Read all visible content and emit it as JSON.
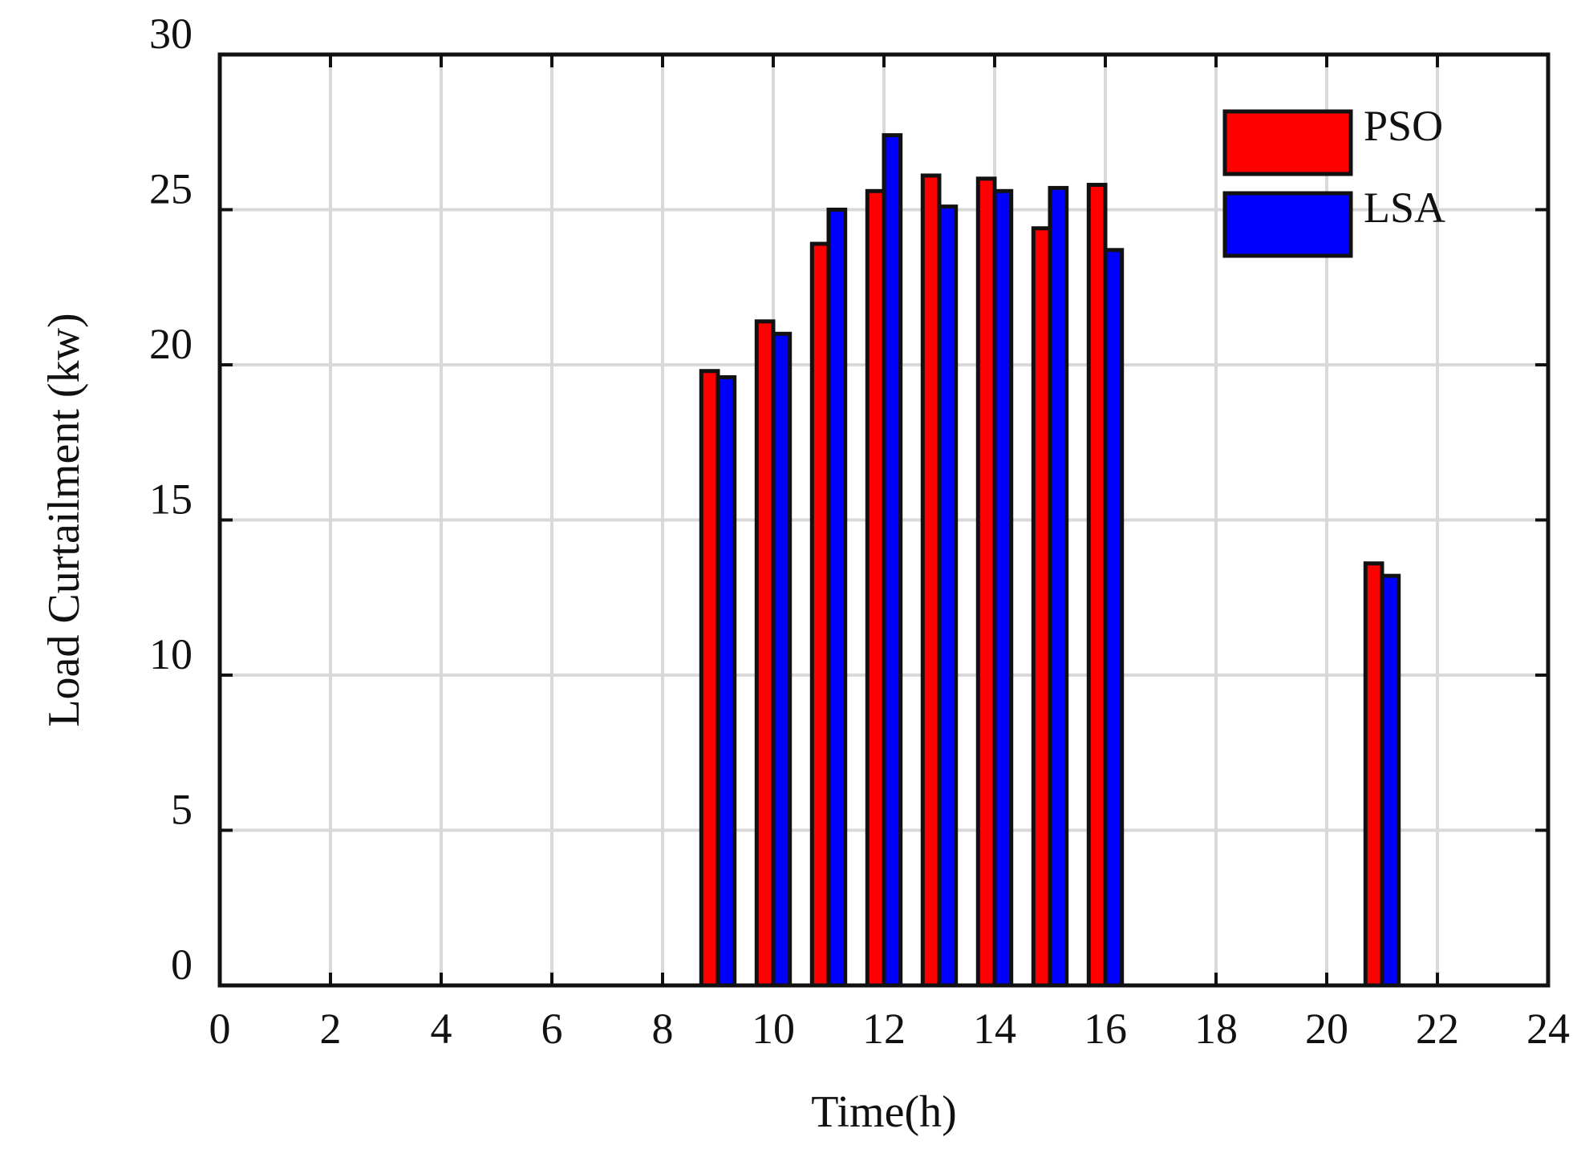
{
  "chart_data": {
    "type": "bar",
    "xlabel": "Time(h)",
    "ylabel": "Load Curtailment (kw)",
    "xlim": [
      0,
      24
    ],
    "ylim": [
      0,
      30
    ],
    "xticks": [
      0,
      2,
      4,
      6,
      8,
      10,
      12,
      14,
      16,
      18,
      20,
      22,
      24
    ],
    "yticks": [
      0,
      5,
      10,
      15,
      20,
      25,
      30
    ],
    "grid": true,
    "legend_position": "top-right",
    "categories": [
      9,
      10,
      11,
      12,
      13,
      14,
      15,
      16,
      21
    ],
    "series": [
      {
        "name": "PSO",
        "color": "#ff0000",
        "values": [
          19.8,
          21.4,
          23.9,
          25.6,
          26.1,
          26.0,
          24.4,
          25.8,
          13.6
        ]
      },
      {
        "name": "LSA",
        "color": "#0000ff",
        "values": [
          19.6,
          21.0,
          25.0,
          27.4,
          25.1,
          25.6,
          25.7,
          23.7,
          13.2
        ]
      }
    ]
  }
}
